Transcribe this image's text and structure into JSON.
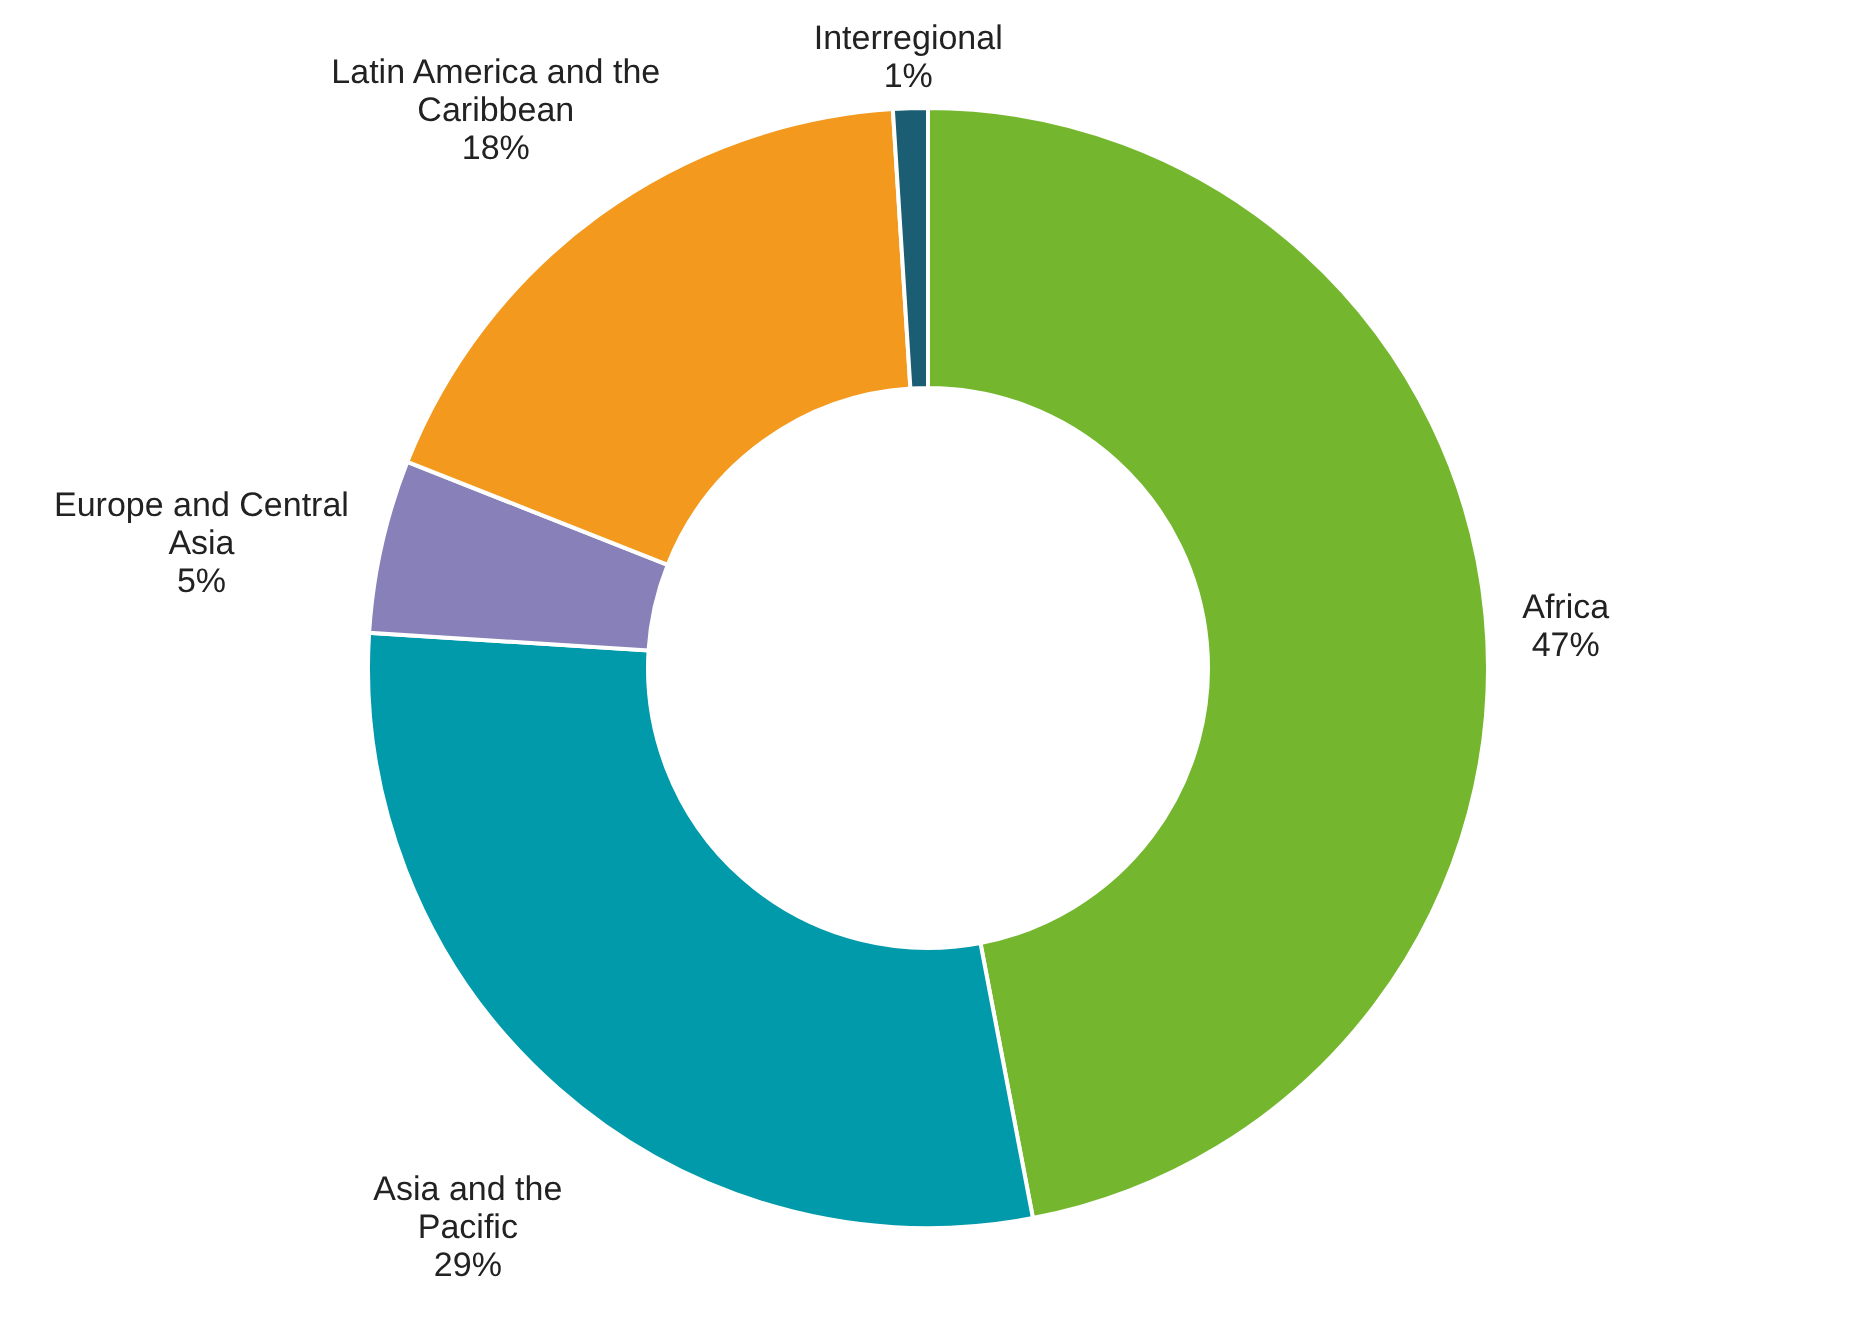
{
  "chart_data": {
    "type": "donut",
    "categories": [
      "Africa",
      "Asia and the\nPacific",
      "Europe and Central\nAsia",
      "Latin America and the\nCaribbean",
      "Interregional"
    ],
    "values": [
      47,
      29,
      5,
      18,
      1
    ],
    "value_labels": [
      "47%",
      "29%",
      "5%",
      "18%",
      "1%"
    ],
    "colors": [
      "#74b72e",
      "#009aaa",
      "#8880b8",
      "#f39a1e",
      "#1b5d72"
    ]
  }
}
